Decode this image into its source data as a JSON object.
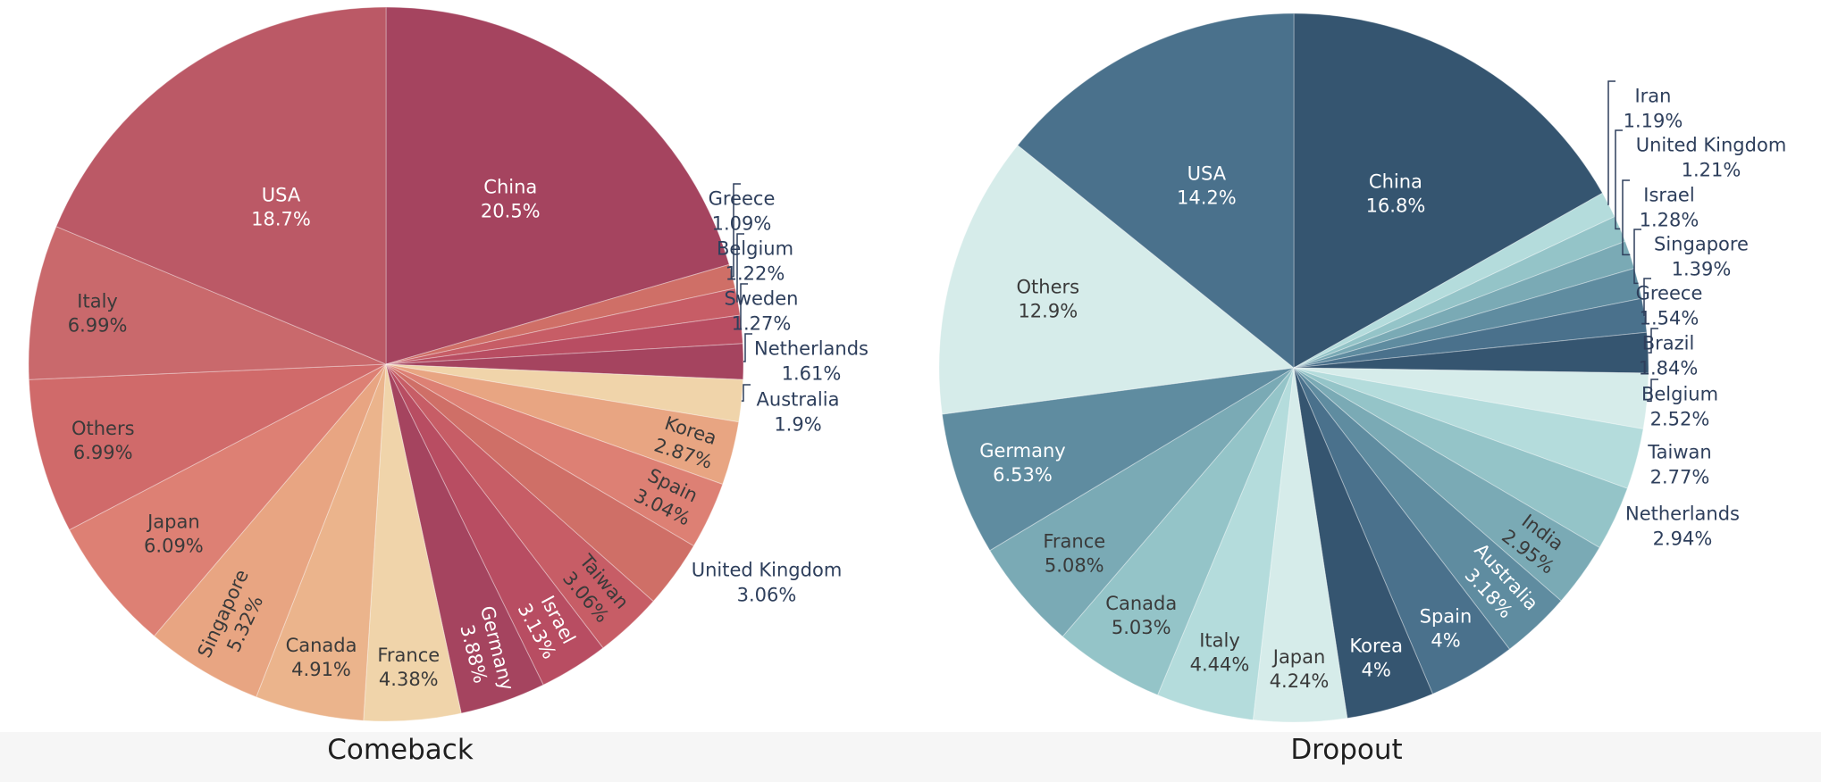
{
  "captions": {
    "left": "Comeback",
    "right": "Dropout"
  },
  "chart_data": [
    {
      "type": "pie",
      "title": "Comeback",
      "slices": [
        {
          "label": "China",
          "value": 20.5,
          "pct": "20.5%",
          "color": "#a5445f"
        },
        {
          "label": "Greece",
          "value": 1.09,
          "pct": "1.09%",
          "color": "#cf6f67"
        },
        {
          "label": "Belgium",
          "value": 1.22,
          "pct": "1.22%",
          "color": "#c75d66"
        },
        {
          "label": "Sweden",
          "value": 1.27,
          "pct": "1.27%",
          "color": "#b84d62"
        },
        {
          "label": "Netherlands",
          "value": 1.61,
          "pct": "1.61%",
          "color": "#a5445f"
        },
        {
          "label": "Australia",
          "value": 1.9,
          "pct": "1.9%",
          "color": "#f0d4aa"
        },
        {
          "label": "Korea",
          "value": 2.87,
          "pct": "2.87%",
          "color": "#e8a582"
        },
        {
          "label": "Spain",
          "value": 3.04,
          "pct": "3.04%",
          "color": "#dd8074"
        },
        {
          "label": "United Kingdom",
          "value": 3.06,
          "pct": "3.06%",
          "color": "#cf6f67"
        },
        {
          "label": "Taiwan",
          "value": 3.06,
          "pct": "3.06%",
          "color": "#c75d66"
        },
        {
          "label": "Israel",
          "value": 3.13,
          "pct": "3.13%",
          "color": "#b84d62"
        },
        {
          "label": "Germany",
          "value": 3.88,
          "pct": "3.88%",
          "color": "#a5445f"
        },
        {
          "label": "France",
          "value": 4.38,
          "pct": "4.38%",
          "color": "#f0d4aa"
        },
        {
          "label": "Canada",
          "value": 4.91,
          "pct": "4.91%",
          "color": "#ebb48c"
        },
        {
          "label": "Singapore",
          "value": 5.32,
          "pct": "5.32%",
          "color": "#e8a582"
        },
        {
          "label": "Japan",
          "value": 6.09,
          "pct": "6.09%",
          "color": "#dd8074"
        },
        {
          "label": "Others",
          "value": 6.99,
          "pct": "6.99%",
          "color": "#d06a6a"
        },
        {
          "label": "Italy",
          "value": 6.99,
          "pct": "6.99%",
          "color": "#c9696c"
        },
        {
          "label": "USA",
          "value": 18.7,
          "pct": "18.7%",
          "color": "#bb5966"
        }
      ]
    },
    {
      "type": "pie",
      "title": "Dropout",
      "slices": [
        {
          "label": "China",
          "value": 16.8,
          "pct": "16.8%",
          "color": "#355570"
        },
        {
          "label": "Iran",
          "value": 1.19,
          "pct": "1.19%",
          "color": "#b4dcdc"
        },
        {
          "label": "United Kingdom",
          "value": 1.21,
          "pct": "1.21%",
          "color": "#94c4c8"
        },
        {
          "label": "Israel",
          "value": 1.28,
          "pct": "1.28%",
          "color": "#7aaab5"
        },
        {
          "label": "Singapore",
          "value": 1.39,
          "pct": "1.39%",
          "color": "#5f8ca0"
        },
        {
          "label": "Greece",
          "value": 1.54,
          "pct": "1.54%",
          "color": "#4a718c"
        },
        {
          "label": "Brazil",
          "value": 1.84,
          "pct": "1.84%",
          "color": "#355570"
        },
        {
          "label": "Belgium",
          "value": 2.52,
          "pct": "2.52%",
          "color": "#d6ecea"
        },
        {
          "label": "Taiwan",
          "value": 2.77,
          "pct": "2.77%",
          "color": "#b4dcdc"
        },
        {
          "label": "Netherlands",
          "value": 2.94,
          "pct": "2.94%",
          "color": "#94c4c8"
        },
        {
          "label": "India",
          "value": 2.95,
          "pct": "2.95%",
          "color": "#7aaab5"
        },
        {
          "label": "Australia",
          "value": 3.18,
          "pct": "3.18%",
          "color": "#5f8ca0"
        },
        {
          "label": "Spain",
          "value": 4,
          "pct": "4%",
          "color": "#4a718c"
        },
        {
          "label": "Korea",
          "value": 4,
          "pct": "4%",
          "color": "#355570"
        },
        {
          "label": "Japan",
          "value": 4.24,
          "pct": "4.24%",
          "color": "#d6ecea"
        },
        {
          "label": "Italy",
          "value": 4.44,
          "pct": "4.44%",
          "color": "#b4dcdc"
        },
        {
          "label": "Canada",
          "value": 5.03,
          "pct": "5.03%",
          "color": "#94c4c8"
        },
        {
          "label": "France",
          "value": 5.08,
          "pct": "5.08%",
          "color": "#7aaab5"
        },
        {
          "label": "Germany",
          "value": 6.53,
          "pct": "6.53%",
          "color": "#5f8ca0"
        },
        {
          "label": "Others",
          "value": 12.9,
          "pct": "12.9%",
          "color": "#d6ecea"
        },
        {
          "label": "USA",
          "value": 14.2,
          "pct": "14.2%",
          "color": "#4a718c"
        }
      ]
    }
  ]
}
